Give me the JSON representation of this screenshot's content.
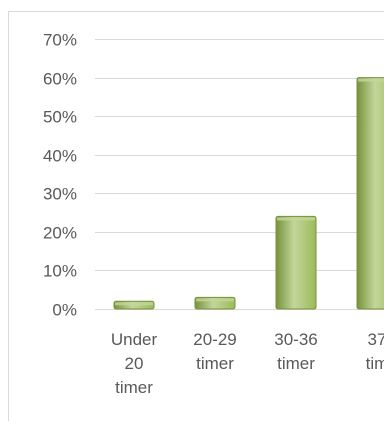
{
  "chart_data": {
    "type": "bar",
    "categories": [
      [
        "Under",
        "20",
        "timer"
      ],
      [
        "20-29",
        "timer"
      ],
      [
        "30-36",
        "timer"
      ],
      [
        "37",
        "tim"
      ]
    ],
    "values": [
      2,
      3,
      24,
      60
    ],
    "ylim": [
      0,
      70
    ],
    "yticks": [
      "0%",
      "10%",
      "20%",
      "30%",
      "40%",
      "50%",
      "60%",
      "70%"
    ],
    "grid": true,
    "colors": {
      "bar_fill": "#9bbb59",
      "bar_highlight": "#c3d69b",
      "bar_shadow": "#76923c",
      "grid": "#d9d9d9",
      "text": "#595959",
      "frame": "#d9d9d9"
    }
  }
}
